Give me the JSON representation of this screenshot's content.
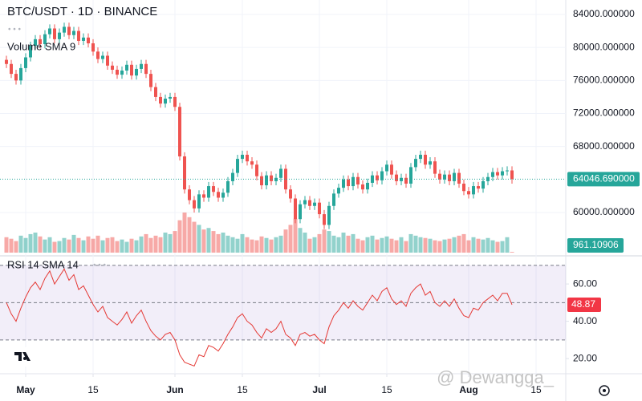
{
  "chart_data": [
    {
      "type": "candlestick",
      "title": "BTC/USDT · 1D · BINANCE",
      "volume_title": "Volume SMA 9",
      "up_color": "#26a69a",
      "down_color": "#ef5350",
      "open": [
        78500,
        78000,
        76800,
        76000,
        77500,
        78800,
        80200,
        81000,
        80400,
        81600,
        82300,
        81000,
        81800,
        82500,
        81500,
        82000,
        80800,
        81200,
        80500,
        79500,
        78600,
        79000,
        77800,
        77300,
        76700,
        77200,
        77900,
        76600,
        77400,
        78000,
        76800,
        75200,
        74000,
        73200,
        73800,
        74000,
        72800,
        66800,
        62800,
        61500,
        60500,
        62200,
        61800,
        63200,
        62500,
        61800,
        62400,
        63800,
        64800,
        66500,
        67000,
        66200,
        65800,
        64400,
        63300,
        64500,
        63800,
        64200,
        65300,
        62800,
        61700,
        59200,
        61000,
        61500,
        60800,
        61200,
        59800,
        58500,
        60800,
        62300,
        63000,
        64000,
        63200,
        64300,
        63400,
        62800,
        63600,
        64500,
        63900,
        65000,
        65800,
        64600,
        63800,
        64200,
        63500,
        65500,
        66500,
        67000,
        65800,
        66200,
        64700,
        64000,
        64600,
        63800,
        64800,
        63500,
        62600,
        62200,
        63200,
        62900,
        63800,
        64300,
        64900,
        64500,
        65000,
        65100
      ],
      "high": [
        79000,
        78500,
        77300,
        78000,
        79300,
        80700,
        81500,
        81500,
        82100,
        82800,
        82800,
        82300,
        83000,
        83000,
        82500,
        82500,
        81700,
        81700,
        81000,
        80000,
        79500,
        79500,
        78300,
        77800,
        77700,
        78400,
        78400,
        77900,
        78500,
        78500,
        77300,
        75700,
        74500,
        74300,
        74500,
        74500,
        73300,
        67300,
        63300,
        62000,
        62700,
        62700,
        63700,
        63700,
        63000,
        62900,
        64300,
        65300,
        67000,
        67500,
        67500,
        66700,
        66300,
        64900,
        65000,
        65000,
        64700,
        65800,
        65800,
        63300,
        62200,
        61500,
        62000,
        62000,
        61700,
        61700,
        60300,
        61300,
        62800,
        63500,
        64500,
        64500,
        64800,
        64800,
        63900,
        64100,
        65000,
        65000,
        65500,
        66300,
        66300,
        65100,
        64700,
        64700,
        66000,
        67000,
        67500,
        67500,
        66700,
        66700,
        65200,
        65100,
        65100,
        65300,
        65300,
        64000,
        63100,
        63700,
        63700,
        64300,
        64800,
        65400,
        65400,
        65500,
        65600,
        65600
      ],
      "low": [
        77500,
        76300,
        75500,
        75500,
        77000,
        78300,
        79700,
        79900,
        79900,
        81100,
        80500,
        80500,
        81300,
        81000,
        81000,
        80300,
        80300,
        80000,
        79000,
        78100,
        78100,
        77300,
        76800,
        76200,
        76200,
        76700,
        76100,
        76100,
        76900,
        76300,
        74700,
        73500,
        72700,
        72700,
        73300,
        72300,
        66300,
        62300,
        61000,
        60000,
        60000,
        61300,
        61300,
        62000,
        61300,
        61300,
        61900,
        63300,
        64300,
        66000,
        65700,
        65300,
        63900,
        62800,
        62800,
        63300,
        63300,
        63700,
        62300,
        61200,
        58700,
        58700,
        60500,
        60300,
        60300,
        59300,
        58000,
        58000,
        60300,
        61800,
        62500,
        62700,
        62700,
        62900,
        62300,
        62300,
        63100,
        63400,
        63400,
        64500,
        64100,
        63300,
        63300,
        63000,
        63000,
        65000,
        66000,
        65300,
        65300,
        64200,
        63500,
        63500,
        63300,
        63300,
        63000,
        62100,
        61700,
        61700,
        62400,
        62400,
        63300,
        63800,
        64000,
        64000,
        64500,
        63500
      ],
      "close": [
        78000,
        76800,
        76000,
        77500,
        78800,
        80200,
        81000,
        80400,
        81600,
        82300,
        81000,
        81800,
        82500,
        81500,
        82000,
        80800,
        81200,
        80500,
        79500,
        78600,
        79000,
        77800,
        77300,
        76700,
        77200,
        77900,
        76600,
        77400,
        78000,
        76800,
        75200,
        74000,
        73200,
        73800,
        74000,
        72800,
        66800,
        62800,
        61500,
        60500,
        62200,
        61800,
        63200,
        62500,
        61800,
        62400,
        63800,
        64800,
        66500,
        67000,
        66200,
        65800,
        64400,
        63300,
        64500,
        63800,
        64200,
        65300,
        62800,
        61700,
        59200,
        61000,
        61500,
        60800,
        61200,
        59800,
        58500,
        60800,
        62300,
        63000,
        64000,
        63200,
        64300,
        63400,
        62800,
        63600,
        64500,
        63900,
        65000,
        65800,
        64600,
        63800,
        64200,
        63500,
        65500,
        66500,
        67000,
        65800,
        66200,
        64700,
        64000,
        64600,
        63800,
        64800,
        63500,
        62600,
        62200,
        63200,
        62900,
        63800,
        64300,
        64900,
        64500,
        65000,
        65100,
        64046.69
      ],
      "last_price_label": "64046.690000",
      "volume": [
        20000,
        18000,
        15000,
        22000,
        19000,
        24000,
        26000,
        21000,
        17000,
        20000,
        14000,
        15000,
        19000,
        17000,
        23000,
        19000,
        16000,
        21000,
        18000,
        22000,
        16000,
        19000,
        20000,
        15000,
        17000,
        14000,
        18000,
        16000,
        21000,
        24000,
        19000,
        22000,
        20000,
        26000,
        24000,
        28000,
        42000,
        52000,
        46000,
        40000,
        36000,
        30000,
        32000,
        28000,
        24000,
        26000,
        22000,
        20000,
        18000,
        24000,
        20000,
        17000,
        16000,
        21000,
        19000,
        17000,
        20000,
        22000,
        30000,
        36000,
        44000,
        32000,
        26000,
        18000,
        20000,
        24000,
        30000,
        28000,
        22000,
        20000,
        26000,
        22000,
        24000,
        18000,
        16000,
        20000,
        22000,
        17000,
        19000,
        21000,
        18000,
        16000,
        20000,
        15000,
        24000,
        22000,
        20000,
        19000,
        18000,
        16000,
        15000,
        17000,
        18000,
        20000,
        22000,
        24000,
        16000,
        20000,
        18000,
        17000,
        19000,
        16000,
        14000,
        15000,
        20000,
        961.10906
      ],
      "last_volume_label": "961.10906",
      "ylim": [
        54850,
        85750
      ],
      "yticks": [
        {
          "value": 84000,
          "label": "84000.000000"
        },
        {
          "value": 80000,
          "label": "80000.000000"
        },
        {
          "value": 76000,
          "label": "76000.000000"
        },
        {
          "value": 72000,
          "label": "72000.000000"
        },
        {
          "value": 68000,
          "label": "68000.000000"
        },
        {
          "value": 60000,
          "label": "60000.000000"
        }
      ],
      "grid": true
    },
    {
      "type": "line",
      "title": "RSI 14 SMA 14",
      "color": "#e53935",
      "values": [
        50,
        44,
        40,
        47,
        53,
        58,
        61,
        57,
        63,
        67,
        60,
        64,
        68,
        62,
        65,
        57,
        59,
        54,
        49,
        45,
        48,
        42,
        40,
        38,
        41,
        45,
        39,
        43,
        46,
        40,
        35,
        32,
        30,
        33,
        34,
        30,
        22,
        18,
        17,
        16,
        22,
        21,
        27,
        26,
        24,
        28,
        33,
        37,
        42,
        44,
        40,
        38,
        34,
        31,
        36,
        34,
        36,
        40,
        33,
        31,
        27,
        33,
        34,
        32,
        33,
        30,
        28,
        37,
        43,
        46,
        50,
        47,
        51,
        48,
        46,
        50,
        54,
        51,
        56,
        58,
        52,
        49,
        51,
        48,
        55,
        58,
        60,
        54,
        56,
        50,
        48,
        51,
        48,
        52,
        47,
        43,
        42,
        47,
        46,
        50,
        52,
        54,
        51,
        55,
        55,
        48.87
      ],
      "last_value_label": "48.87",
      "bands": [
        70,
        50,
        30
      ],
      "ylim": [
        12.3,
        73.8
      ],
      "yticks": [
        {
          "value": 60,
          "label": "60.00"
        },
        {
          "value": 40,
          "label": "40.00"
        },
        {
          "value": 20,
          "label": "20.00"
        }
      ],
      "xticks": [
        {
          "value": 4,
          "label": "May"
        },
        {
          "value": 18,
          "label": "15"
        },
        {
          "value": 35,
          "label": "Jun"
        },
        {
          "value": 49,
          "label": "15"
        },
        {
          "value": 65,
          "label": "Jul"
        },
        {
          "value": 79,
          "label": "15"
        },
        {
          "value": 96,
          "label": "Aug"
        },
        {
          "value": 110,
          "label": "15"
        }
      ]
    }
  ],
  "watermark": "@ Dewangga_"
}
